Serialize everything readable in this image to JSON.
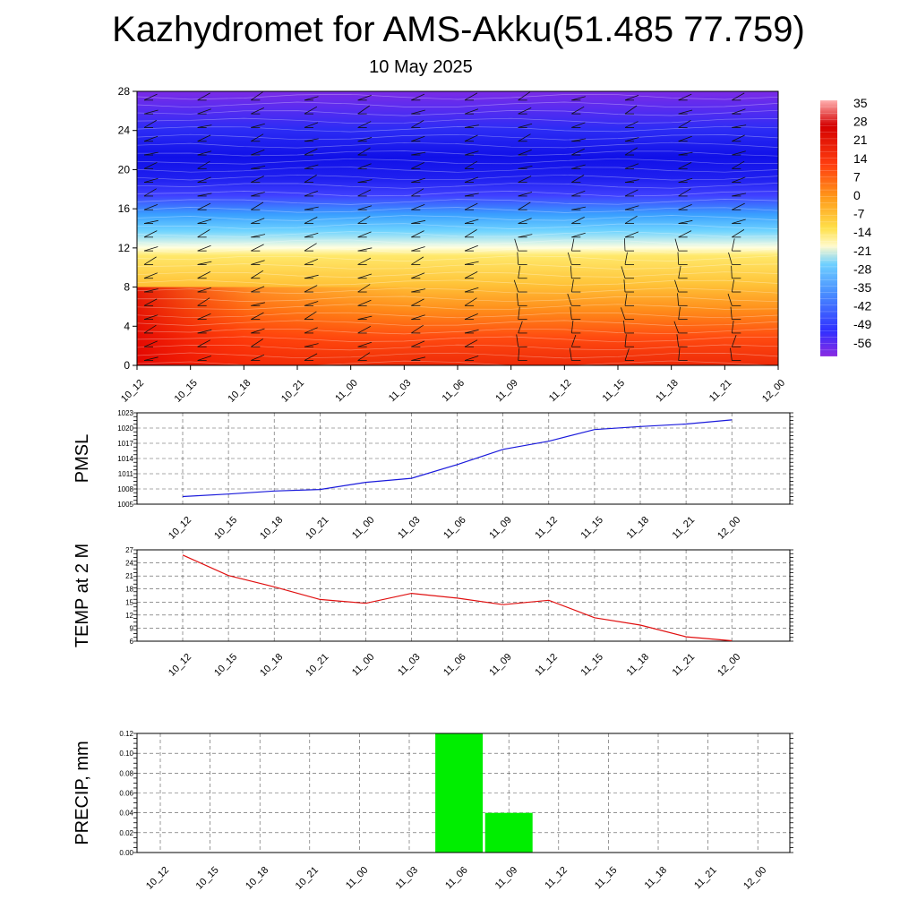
{
  "page": {
    "title": "Kazhydromet for AMS-Akku(51.485 77.759)",
    "date": "10 May 2025"
  },
  "colors": {
    "pmsl_line": "#1a1adb",
    "temp_line": "#e01010",
    "precip_bar": "#00ee00",
    "colorbar": [
      "#8a2be2",
      "#3030ff",
      "#4a90ff",
      "#6fd0ff",
      "#fffacd",
      "#ffd24a",
      "#ff9a1a",
      "#ff3d0f",
      "#d40000",
      "#ff9a9a"
    ]
  },
  "chart_data": [
    {
      "type": "heatmap",
      "title": "",
      "x_ticks": [
        "10_12",
        "10_15",
        "10_18",
        "10_21",
        "11_00",
        "11_03",
        "11_06",
        "11_09",
        "11_12",
        "11_15",
        "11_18",
        "11_21",
        "12_00"
      ],
      "y_ticks": [
        "0",
        "4",
        "8",
        "12",
        "16",
        "20",
        "24",
        "28"
      ],
      "ylim": [
        0,
        28
      ],
      "colorbar_labels": [
        "35",
        "28",
        "21",
        "14",
        "7",
        "0",
        "-7",
        "-14",
        "-21",
        "-28",
        "-35",
        "-42",
        "-49",
        "-56"
      ],
      "overlay": "wind barbs",
      "grid": false
    },
    {
      "type": "line",
      "ylabel": "PMSL",
      "x": [
        "10_12",
        "10_15",
        "10_18",
        "10_21",
        "11_00",
        "11_03",
        "11_06",
        "11_09",
        "11_12",
        "11_15",
        "11_18",
        "11_21",
        "12_00"
      ],
      "y_ticks": [
        "1005",
        "1008",
        "1011",
        "1014",
        "1017",
        "1020",
        "1023"
      ],
      "ylim": [
        1005,
        1023
      ],
      "values": [
        1006.5,
        1007.0,
        1007.6,
        1007.9,
        1009.3,
        1010.1,
        1012.8,
        1015.8,
        1017.4,
        1019.7,
        1020.3,
        1020.8,
        1021.6
      ],
      "grid": true
    },
    {
      "type": "line",
      "ylabel": "TEMP at 2 M",
      "x": [
        "10_12",
        "10_15",
        "10_18",
        "10_21",
        "11_00",
        "11_03",
        "11_06",
        "11_09",
        "11_12",
        "11_15",
        "11_18",
        "11_21",
        "12_00"
      ],
      "y_ticks": [
        "6",
        "9",
        "12",
        "15",
        "18",
        "21",
        "24",
        "27"
      ],
      "ylim": [
        6,
        27
      ],
      "values": [
        25.8,
        21.1,
        18.5,
        15.6,
        14.7,
        17.0,
        15.9,
        14.4,
        15.4,
        11.4,
        9.7,
        7.0,
        6.1
      ],
      "grid": true
    },
    {
      "type": "bar",
      "ylabel": "PRECIP, mm",
      "categories": [
        "10_12",
        "10_15",
        "10_18",
        "10_21",
        "11_00",
        "11_03",
        "11_06",
        "11_09",
        "11_12",
        "11_15",
        "11_18",
        "11_21",
        "12_00"
      ],
      "y_ticks": [
        "0.00",
        "0.02",
        "0.04",
        "0.06",
        "0.08",
        "0.10",
        "0.12"
      ],
      "ylim": [
        0,
        0.12
      ],
      "values": [
        0,
        0,
        0,
        0,
        0,
        0,
        0.12,
        0.04,
        0,
        0,
        0,
        0,
        0
      ],
      "grid": true
    }
  ]
}
